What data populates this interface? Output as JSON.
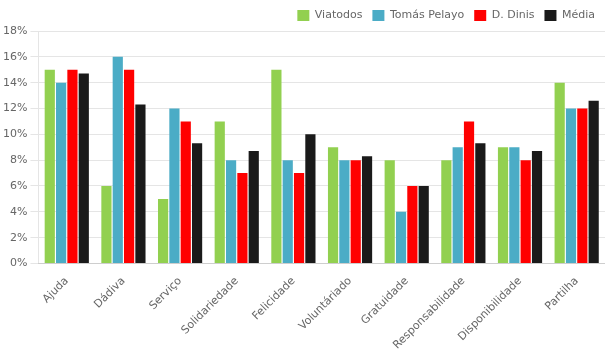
{
  "chart_data": {
    "type": "bar",
    "categories": [
      "Ajuda",
      "Dádiva",
      "Serviço",
      "Solidariedade",
      "Felicidade",
      "Voluntáriado",
      "Gratuidade",
      "Responsabilidade",
      "Disponibilidade",
      "Partilha"
    ],
    "series": [
      {
        "name": "Viatodos",
        "color": "#92d050",
        "values": [
          0.15,
          0.06,
          0.05,
          0.11,
          0.15,
          0.09,
          0.08,
          0.08,
          0.09,
          0.14
        ]
      },
      {
        "name": "Tomás Pelayo",
        "color": "#4bacc6",
        "values": [
          0.14,
          0.16,
          0.12,
          0.08,
          0.08,
          0.08,
          0.04,
          0.09,
          0.09,
          0.12
        ]
      },
      {
        "name": "D. Dinis",
        "color": "#ff0000",
        "values": [
          0.15,
          0.15,
          0.11,
          0.07,
          0.07,
          0.08,
          0.06,
          0.11,
          0.08,
          0.12
        ]
      },
      {
        "name": "Média",
        "color": "#1a1a1a",
        "values": [
          0.147,
          0.123,
          0.093,
          0.087,
          0.1,
          0.083,
          0.06,
          0.093,
          0.087,
          0.126
        ]
      }
    ],
    "ylim": [
      0,
      0.18
    ],
    "yticks": [
      {
        "value": 0,
        "label": "0%"
      },
      {
        "value": 0.02,
        "label": "2%"
      },
      {
        "value": 0.04,
        "label": "4%"
      },
      {
        "value": 0.06,
        "label": "6%"
      },
      {
        "value": 0.08,
        "label": "8%"
      },
      {
        "value": 0.1,
        "label": "10%"
      },
      {
        "value": 0.12,
        "label": "12%"
      },
      {
        "value": 0.14,
        "label": "14%"
      },
      {
        "value": 0.16,
        "label": "16%"
      },
      {
        "value": 0.18,
        "label": "18%"
      }
    ],
    "grid": true,
    "legend": "upper right"
  }
}
